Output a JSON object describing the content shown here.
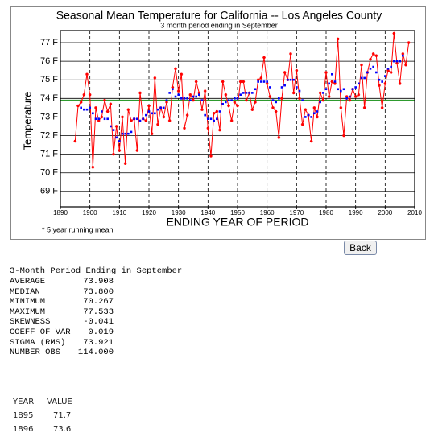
{
  "chart_data": {
    "type": "line",
    "title": "Seasonal  Mean Temperature for California -- Los Angeles County",
    "subtitle": "3 month period ending in September",
    "x_label": "ENDING YEAR OF PERIOD",
    "y_label": "Temperature",
    "note": "* 5 year running mean",
    "x": [
      1895,
      1896,
      1897,
      1898,
      1899,
      1900,
      1901,
      1902,
      1903,
      1904,
      1905,
      1906,
      1907,
      1908,
      1909,
      1910,
      1911,
      1912,
      1913,
      1914,
      1915,
      1916,
      1917,
      1918,
      1919,
      1920,
      1921,
      1922,
      1923,
      1924,
      1925,
      1926,
      1927,
      1928,
      1929,
      1930,
      1931,
      1932,
      1933,
      1934,
      1935,
      1936,
      1937,
      1938,
      1939,
      1940,
      1941,
      1942,
      1943,
      1944,
      1945,
      1946,
      1947,
      1948,
      1949,
      1950,
      1951,
      1952,
      1953,
      1954,
      1955,
      1956,
      1957,
      1958,
      1959,
      1960,
      1961,
      1962,
      1963,
      1964,
      1965,
      1966,
      1967,
      1968,
      1969,
      1970,
      1971,
      1972,
      1973,
      1974,
      1975,
      1976,
      1977,
      1978,
      1979,
      1980,
      1981,
      1982,
      1983,
      1984,
      1985,
      1986,
      1987,
      1988,
      1989,
      1990,
      1991,
      1992,
      1993,
      1994,
      1995,
      1996,
      1997,
      1998,
      1999,
      2000,
      2001,
      2002,
      2003,
      2004,
      2005,
      2006,
      2007,
      2008
    ],
    "series": [
      {
        "color": "#ff0000",
        "values": [
          71.7,
          73.6,
          73.8,
          74.2,
          75.3,
          74.2,
          70.3,
          73.5,
          72.8,
          73.0,
          73.9,
          73.3,
          73.7,
          71.0,
          72.5,
          71.2,
          73.0,
          70.5,
          73.4,
          72.8,
          72.9,
          71.2,
          74.3,
          72.9,
          72.8,
          73.6,
          72.1,
          75.1,
          72.6,
          73.5,
          73.0,
          73.8,
          72.8,
          74.6,
          75.6,
          74.4,
          75.3,
          72.4,
          73.1,
          74.2,
          73.9,
          74.9,
          74.3,
          73.4,
          74.4,
          72.4,
          70.9,
          73.2,
          73.3,
          72.3,
          74.9,
          74.2,
          73.6,
          72.8,
          73.8,
          73.6,
          74.9,
          74.9,
          73.9,
          74.3,
          73.4,
          73.8,
          75.0,
          75.1,
          76.2,
          74.8,
          74.1,
          73.5,
          73.3,
          71.9,
          74.0,
          75.4,
          75.0,
          76.4,
          74.3,
          75.5,
          74.0,
          72.6,
          73.4,
          73.1,
          71.7,
          73.5,
          73.0,
          74.3,
          73.9,
          75.4,
          74.1,
          74.9,
          74.8,
          77.2,
          73.5,
          72.0,
          74.1,
          73.9,
          74.5,
          74.1,
          74.2,
          75.8,
          73.5,
          75.4,
          76.1,
          76.4,
          76.3,
          74.7,
          73.5,
          74.8,
          75.5,
          75.4,
          77.5,
          75.9,
          74.8,
          76.4,
          75.8,
          77.0
        ]
      },
      {
        "color": "#0000ff",
        "values": [
          null,
          null,
          73.5,
          73.4,
          73.4,
          73.5,
          73.2,
          72.9,
          72.9,
          73.3,
          72.9,
          72.9,
          72.5,
          72.3,
          71.9,
          71.7,
          72.1,
          72.1,
          72.1,
          72.2,
          72.9,
          72.9,
          72.8,
          72.9,
          73.1,
          73.3,
          73.2,
          73.2,
          73.4,
          73.5,
          73.5,
          73.9,
          74.3,
          74.5,
          74.1,
          74.2,
          74.0,
          74.0,
          74.0,
          73.9,
          74.1,
          74.1,
          74.2,
          73.9,
          73.1,
          72.9,
          72.9,
          72.8,
          72.9,
          73.3,
          73.7,
          73.8,
          73.9,
          73.9,
          74.0,
          74.0,
          74.2,
          74.3,
          74.3,
          74.3,
          74.3,
          74.5,
          74.9,
          74.9,
          74.9,
          74.9,
          74.6,
          73.9,
          73.8,
          74.0,
          74.6,
          74.7,
          75.0,
          75.0,
          75.0,
          74.6,
          74.4,
          73.9,
          73.0,
          73.1,
          73.0,
          73.2,
          73.3,
          73.8,
          74.3,
          74.5,
          74.8,
          75.3,
          74.9,
          74.5,
          74.4,
          74.5,
          74.0,
          74.1,
          74.5,
          74.6,
          74.8,
          75.1,
          75.1,
          75.4,
          75.6,
          75.7,
          75.4,
          75.0,
          74.9,
          75.2,
          75.6,
          75.7,
          76.0,
          76.0,
          76.0,
          76.3,
          null,
          null
        ]
      }
    ],
    "mean_line": {
      "value": 73.908,
      "color": "#2e9b2e"
    },
    "xlim": [
      1890,
      2010
    ],
    "xticks": [
      1890,
      1900,
      1910,
      1920,
      1930,
      1940,
      1950,
      1960,
      1970,
      1980,
      1990,
      2000,
      2010
    ],
    "ylim": [
      68.17,
      77.65
    ],
    "yticks": [
      {
        "value": 69,
        "label": "69 F"
      },
      {
        "value": 70,
        "label": "70 F"
      },
      {
        "value": 71,
        "label": "71 F"
      },
      {
        "value": 72,
        "label": "72 F"
      },
      {
        "value": 73,
        "label": "73 F"
      },
      {
        "value": 74,
        "label": "74 F"
      },
      {
        "value": 75,
        "label": "75 F"
      },
      {
        "value": 76,
        "label": "76 F"
      },
      {
        "value": 77,
        "label": "77 F"
      }
    ],
    "grid": true
  },
  "button": "Back",
  "stats": {
    "heading": "3-Month Period Ending in September",
    "rows": [
      [
        "AVERAGE",
        "73.908"
      ],
      [
        "MEDIAN",
        "73.800"
      ],
      [
        "MINIMUM",
        "70.267"
      ],
      [
        "MAXIMUM",
        "77.533"
      ],
      [
        "SKEWNESS",
        "-0.041"
      ],
      [
        "COEFF OF VAR",
        "0.019"
      ],
      [
        "SIGMA (RMS)",
        "73.921"
      ],
      [
        "NUMBER OBS",
        "114.000"
      ]
    ]
  },
  "table": {
    "header": [
      "YEAR",
      "VALUE"
    ],
    "rows": [
      [
        "1895",
        "71.7"
      ],
      [
        "1896",
        "73.6"
      ]
    ]
  }
}
